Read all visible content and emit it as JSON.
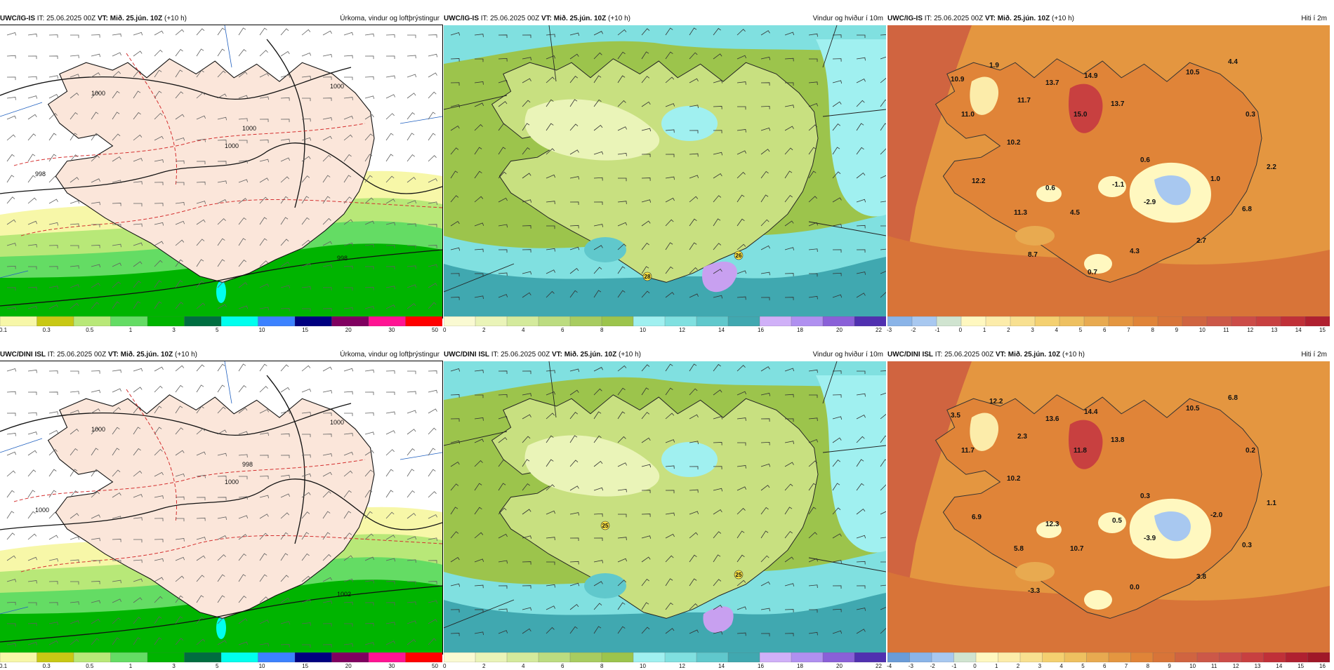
{
  "panels": [
    {
      "model": "UWC/IG-IS",
      "it": "IT: 25.06.2025 00Z",
      "vt": "VT: Mið. 25.jún. 10Z",
      "lead": "(+10 h)",
      "title": "Úrkoma, vindur og loftþrýstingur",
      "colorbar": {
        "labels": [
          "0.1",
          "0.3",
          "0.5",
          "1",
          "3",
          "5",
          "10",
          "15",
          "20",
          "30",
          "50"
        ],
        "colors": [
          "#f7f7a8",
          "#c8c814",
          "#b8e878",
          "#64dc64",
          "#00b400",
          "#006e40",
          "#00ffee",
          "#3c82ff",
          "#000080",
          "#800060",
          "#ff1493",
          "#ff0000"
        ]
      },
      "contour_labels": [
        "1000",
        "1000",
        "998",
        "1000",
        "1000",
        "998"
      ],
      "markers": []
    },
    {
      "model": "UWC/IG-IS",
      "it": "IT: 25.06.2025 00Z",
      "vt": "VT: Mið. 25.jún. 10Z",
      "lead": "(+10 h)",
      "title": "Vindur og hviður í 10m",
      "colorbar": {
        "labels": [
          "0",
          "2",
          "4",
          "6",
          "8",
          "10",
          "12",
          "14",
          "16",
          "18",
          "20",
          "22"
        ],
        "colors": [
          "#fafad2",
          "#eaf4b8",
          "#d4ea9c",
          "#bcdc80",
          "#a8cc60",
          "#9cc44c",
          "#a0f0f0",
          "#80e0e0",
          "#60c8cc",
          "#40a8b0",
          "#d0b0f8",
          "#b090f0",
          "#8a60d8",
          "#5030b0"
        ]
      },
      "gust_markers": [
        "28",
        "26"
      ]
    },
    {
      "model": "UWC/IG-IS",
      "it": "IT: 25.06.2025 00Z",
      "vt": "VT: Mið. 25.jún. 10Z",
      "lead": "(+10 h)",
      "title": "Hiti í 2m",
      "colorbar": {
        "labels": [
          "-3",
          "-2",
          "-1",
          "0",
          "1",
          "2",
          "3",
          "4",
          "5",
          "6",
          "7",
          "8",
          "9",
          "10",
          "11",
          "12",
          "13",
          "14",
          "15"
        ],
        "colors": [
          "#8ab4e8",
          "#a8c8f0",
          "#d0e4d0",
          "#fff8c0",
          "#fcecaa",
          "#f8e090",
          "#f4d070",
          "#eec060",
          "#e8aa50",
          "#e49640",
          "#e08438",
          "#d87438",
          "#d06440",
          "#cc5848",
          "#cc4c48",
          "#c84040",
          "#c03038",
          "#b02030"
        ]
      },
      "temps": [
        "10.9",
        "1.9",
        "4.4",
        "11.7",
        "13.7",
        "14.9",
        "10.5",
        "11.0",
        "15.0",
        "13.7",
        "0.3",
        "10.2",
        "0.6",
        "2.2",
        "12.2",
        "0.6",
        "-1.1",
        "1.0",
        "-2.9",
        "6.8",
        "11.3",
        "4.5",
        "2.7",
        "8.7",
        "4.3",
        "0.7"
      ]
    },
    {
      "model": "UWC/DINI ISL",
      "it": "IT: 25.06.2025 00Z",
      "vt": "VT: Mið. 25.jún. 10Z",
      "lead": "(+10 h)",
      "title": "Úrkoma, vindur og loftþrýstingur",
      "colorbar": {
        "labels": [
          "0.1",
          "0.3",
          "0.5",
          "1",
          "3",
          "5",
          "10",
          "15",
          "20",
          "30",
          "50"
        ],
        "colors": [
          "#f7f7a8",
          "#c8c814",
          "#b8e878",
          "#64dc64",
          "#00b400",
          "#006e40",
          "#00ffee",
          "#3c82ff",
          "#000080",
          "#800060",
          "#ff1493",
          "#ff0000"
        ]
      },
      "contour_labels": [
        "1000",
        "1000",
        "1000",
        "998",
        "1000",
        "1002"
      ]
    },
    {
      "model": "UWC/DINI ISL",
      "it": "IT: 25.06.2025 00Z",
      "vt": "VT: Mið. 25.jún. 10Z",
      "lead": "(+10 h)",
      "title": "Vindur og hviður í 10m",
      "colorbar": {
        "labels": [
          "0",
          "2",
          "4",
          "6",
          "8",
          "10",
          "12",
          "14",
          "16",
          "18",
          "20",
          "22"
        ],
        "colors": [
          "#fafad2",
          "#eaf4b8",
          "#d4ea9c",
          "#bcdc80",
          "#a8cc60",
          "#9cc44c",
          "#a0f0f0",
          "#80e0e0",
          "#60c8cc",
          "#40a8b0",
          "#d0b0f8",
          "#b090f0",
          "#8a60d8",
          "#5030b0"
        ]
      },
      "gust_markers": [
        "25",
        "25"
      ]
    },
    {
      "model": "UWC/DINI ISL",
      "it": "IT: 25.06.2025 00Z",
      "vt": "VT: Mið. 25.jún. 10Z",
      "lead": "(+10 h)",
      "title": "Hiti í 2m",
      "colorbar": {
        "labels": [
          "-4",
          "-3",
          "-2",
          "-1",
          "0",
          "1",
          "2",
          "3",
          "4",
          "5",
          "6",
          "7",
          "8",
          "9",
          "10",
          "11",
          "12",
          "13",
          "14",
          "15",
          "16"
        ],
        "colors": [
          "#6a9cd8",
          "#8ab4e8",
          "#a8c8f0",
          "#d0e4d0",
          "#fff8c0",
          "#fcecaa",
          "#f8e090",
          "#f4d070",
          "#eec060",
          "#e8aa50",
          "#e49640",
          "#e08438",
          "#d87438",
          "#d06440",
          "#cc5848",
          "#cc4c48",
          "#c84040",
          "#c03038",
          "#b02030",
          "#a01828"
        ]
      },
      "temps": [
        "3.5",
        "12.2",
        "6.8",
        "2.3",
        "13.6",
        "14.4",
        "10.5",
        "11.7",
        "11.8",
        "13.8",
        "0.2",
        "10.2",
        "0.3",
        "1.1",
        "6.9",
        "12.3",
        "0.5",
        "-2.0",
        "-3.9",
        "0.3",
        "5.8",
        "10.7",
        "3.8",
        "-3.3",
        "0.0"
      ]
    }
  ]
}
